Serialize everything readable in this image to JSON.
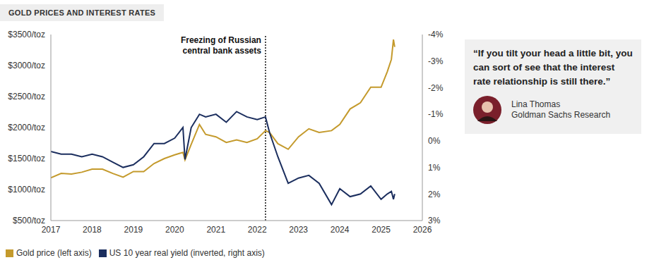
{
  "chart_data": {
    "type": "line",
    "title": "GOLD PRICES AND INTEREST RATES",
    "x": [
      2017.0,
      2017.25,
      2017.5,
      2017.75,
      2018.0,
      2018.25,
      2018.5,
      2018.75,
      2019.0,
      2019.25,
      2019.5,
      2019.75,
      2020.0,
      2020.2,
      2020.25,
      2020.4,
      2020.6,
      2020.75,
      2021.0,
      2021.25,
      2021.5,
      2021.75,
      2022.0,
      2022.2,
      2022.3,
      2022.5,
      2022.75,
      2023.0,
      2023.25,
      2023.5,
      2023.8,
      2024.0,
      2024.25,
      2024.5,
      2024.75,
      2025.0,
      2025.15,
      2025.25,
      2025.3,
      2025.33
    ],
    "series": [
      {
        "name": "Gold price (left axis)",
        "color": "#c49a2c",
        "values": [
          1190,
          1260,
          1250,
          1280,
          1330,
          1330,
          1260,
          1200,
          1290,
          1290,
          1420,
          1500,
          1560,
          1600,
          1480,
          1730,
          2050,
          1890,
          1850,
          1760,
          1800,
          1760,
          1820,
          1950,
          1920,
          1740,
          1650,
          1850,
          1980,
          1920,
          1950,
          2050,
          2300,
          2400,
          2650,
          2650,
          2900,
          3100,
          3420,
          3300
        ]
      },
      {
        "name": "US 10 year real yield (inverted, right axis)",
        "color": "#1b2e5e",
        "axis": "y2",
        "values": [
          0.4,
          0.5,
          0.5,
          0.6,
          0.5,
          0.6,
          0.8,
          1.0,
          0.9,
          0.6,
          0.1,
          0.1,
          -0.1,
          -0.5,
          0.7,
          -0.5,
          -1.0,
          -0.9,
          -1.0,
          -0.7,
          -1.1,
          -0.9,
          -0.8,
          -0.9,
          -0.3,
          0.6,
          1.6,
          1.4,
          1.3,
          1.6,
          2.4,
          1.8,
          2.1,
          2.0,
          1.7,
          2.2,
          2.0,
          1.9,
          2.2,
          2.0
        ]
      }
    ],
    "xlim": [
      2017,
      2026
    ],
    "xticks": [
      2017,
      2018,
      2019,
      2020,
      2021,
      2022,
      2023,
      2024,
      2025,
      2026
    ],
    "ylim": [
      500,
      3500
    ],
    "yticks": [
      {
        "value": 500,
        "label": "$500/toz"
      },
      {
        "value": 1000,
        "label": "$1000/toz"
      },
      {
        "value": 1500,
        "label": "$1500/toz"
      },
      {
        "value": 2000,
        "label": "$2000/toz"
      },
      {
        "value": 2500,
        "label": "$2500/toz"
      },
      {
        "value": 3000,
        "label": "$3000/toz"
      },
      {
        "value": 3500,
        "label": "$3500/toz"
      }
    ],
    "y2lim": [
      3,
      -4
    ],
    "y2ticks": [
      {
        "value": -4,
        "label": "-4%"
      },
      {
        "value": -3,
        "label": "-3%"
      },
      {
        "value": -2,
        "label": "-2%"
      },
      {
        "value": -1,
        "label": "-1%"
      },
      {
        "value": 0,
        "label": "0%"
      },
      {
        "value": 1,
        "label": "1%"
      },
      {
        "value": 2,
        "label": "2%"
      },
      {
        "value": 3,
        "label": "3%"
      }
    ],
    "annotations": [
      {
        "x": 2022.2,
        "text": [
          "Freezing of Russian",
          "central bank assets"
        ]
      }
    ],
    "quote": {
      "text": "“If you tilt your head a little bit, you can sort of see that the interest rate relationship is still there.”",
      "author": "Lina Thomas",
      "affiliation": "Goldman Sachs Research"
    },
    "grid": false,
    "legend": "bottom"
  }
}
